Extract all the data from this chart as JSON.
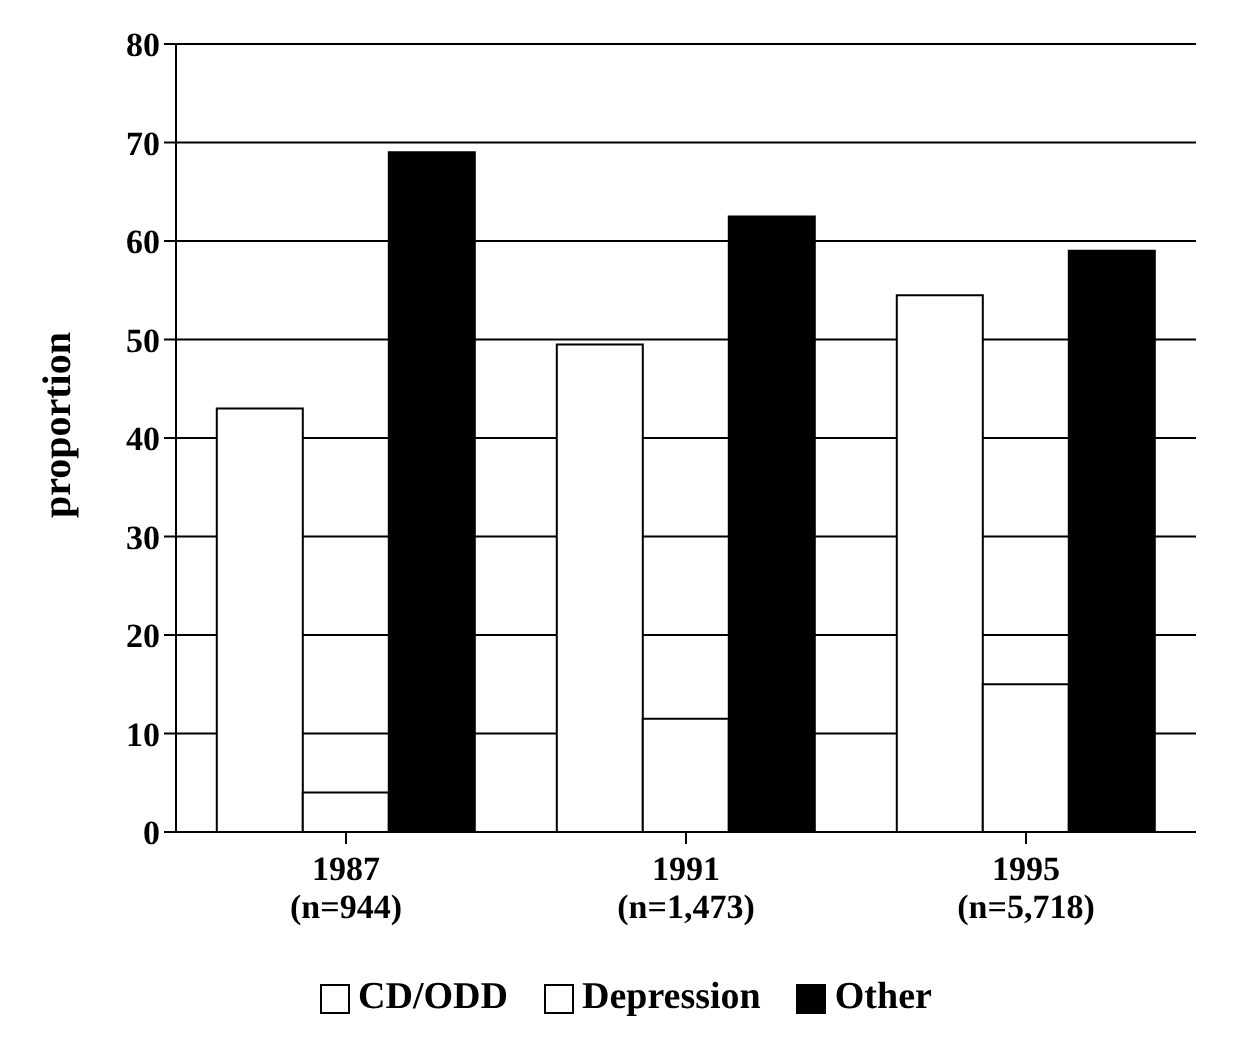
{
  "chart_data": {
    "type": "bar",
    "ylabel": "proportion",
    "categories": [
      "1987 (n=944)",
      "1991 (n=1,473)",
      "1995 (n=5,718)"
    ],
    "series": [
      {
        "name": "CD/ODD",
        "color": "#ffffff",
        "values": [
          43,
          49.5,
          54.5
        ]
      },
      {
        "name": "Depression",
        "color": "#ffffff",
        "values": [
          4,
          11.5,
          15
        ]
      },
      {
        "name": "Other",
        "color": "#000000",
        "values": [
          69,
          62.5,
          59
        ]
      }
    ],
    "ylim": [
      0,
      80
    ],
    "yticks": [
      0,
      10,
      20,
      30,
      40,
      50,
      60,
      70,
      80
    ],
    "grid": "y",
    "legend": "bottom"
  }
}
